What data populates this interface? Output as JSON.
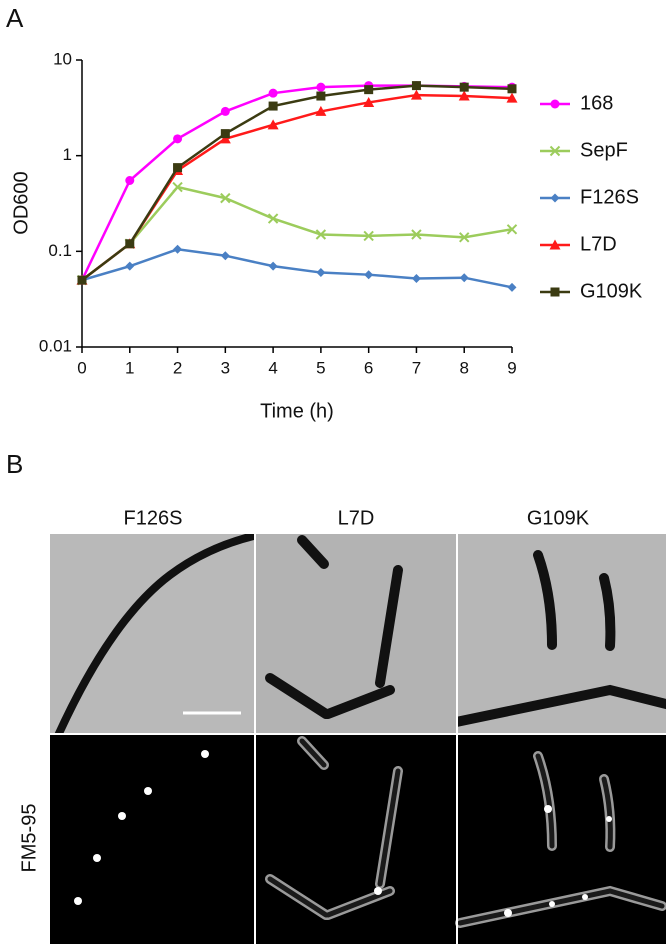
{
  "chart_data": {
    "type": "line",
    "x_label": "Time (h)",
    "y_label": "OD600",
    "x": [
      0,
      1,
      2,
      3,
      4,
      5,
      6,
      7,
      8,
      9
    ],
    "xlim": [
      0,
      9
    ],
    "xticks": [
      0,
      1,
      2,
      3,
      4,
      5,
      6,
      7,
      8,
      9
    ],
    "ylim": [
      0.01,
      10
    ],
    "yticks": [
      0.01,
      0.1,
      1,
      10
    ],
    "y_scale": "log",
    "grid": false,
    "legend": "right",
    "series": [
      {
        "name": "168",
        "color": "#ff00ff",
        "marker": "circle",
        "values": [
          0.05,
          0.55,
          1.5,
          2.9,
          4.5,
          5.2,
          5.4,
          5.4,
          5.3,
          5.2
        ]
      },
      {
        "name": "SepF",
        "color": "#9ccc5c",
        "marker": "x",
        "values": [
          0.05,
          0.12,
          0.47,
          0.36,
          0.22,
          0.15,
          0.145,
          0.15,
          0.14,
          0.17
        ]
      },
      {
        "name": "F126S",
        "color": "#4a80c4",
        "marker": "diamond",
        "values": [
          0.05,
          0.07,
          0.105,
          0.09,
          0.07,
          0.06,
          0.057,
          0.052,
          0.053,
          0.042
        ]
      },
      {
        "name": "L7D",
        "color": "#ff1a1a",
        "marker": "triangle",
        "values": [
          0.05,
          0.12,
          0.7,
          1.5,
          2.1,
          2.9,
          3.6,
          4.3,
          4.2,
          4.0
        ]
      },
      {
        "name": "G109K",
        "color": "#3b3b12",
        "marker": "square",
        "values": [
          0.05,
          0.12,
          0.75,
          1.7,
          3.3,
          4.2,
          4.9,
          5.4,
          5.2,
          5.0
        ]
      }
    ]
  },
  "figure": {
    "panel_labels": [
      "A",
      "B"
    ],
    "image_columns": [
      "F126S",
      "L7D",
      "G109K"
    ],
    "image_row_label": "FM5-95"
  }
}
